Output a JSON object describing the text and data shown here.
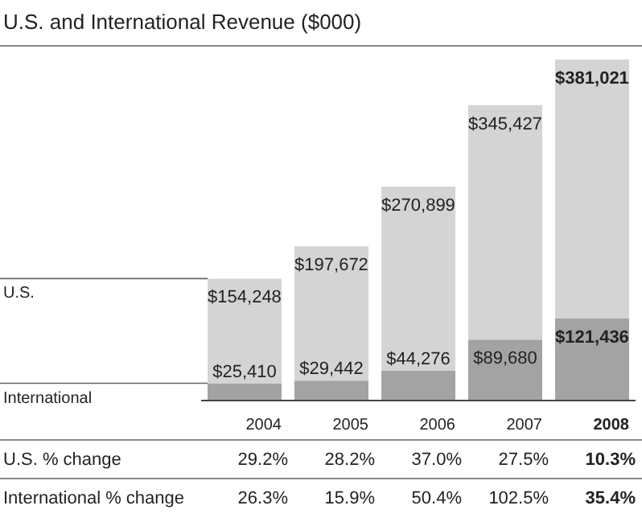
{
  "chart_data": {
    "type": "bar",
    "title": "U.S. and International Revenue ($000)",
    "stacked": true,
    "categories": [
      "2004",
      "2005",
      "2006",
      "2007",
      "2008"
    ],
    "series": [
      {
        "name": "International",
        "color": "#a3a3a3",
        "values": [
          25410,
          29442,
          44276,
          89680,
          121436
        ],
        "value_labels": [
          "$25,410",
          "$29,442",
          "$44,276",
          "$89,680",
          "$121,436"
        ]
      },
      {
        "name": "U.S.",
        "color": "#d4d4d4",
        "values": [
          154248,
          197672,
          270899,
          345427,
          381021
        ],
        "value_labels": [
          "$154,248",
          "$197,672",
          "$270,899",
          "$345,427",
          "$381,021"
        ]
      }
    ],
    "annotations": [
      "U.S. % change",
      "29.2%",
      "28.2%",
      "37.0%",
      "27.5%",
      "10.3%",
      "International % change",
      "26.3%",
      "15.9%",
      "50.4%",
      "102.5%",
      "35.4%"
    ]
  }
}
